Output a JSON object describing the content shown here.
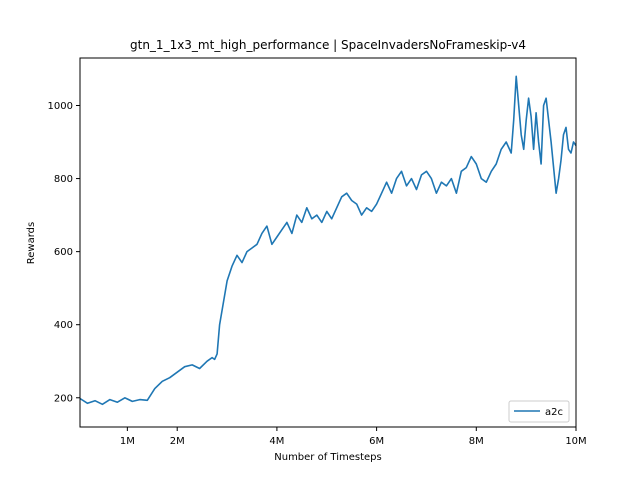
{
  "chart_data": {
    "type": "line",
    "title": "gtn_1_1x3_mt_high_performance | SpaceInvadersNoFrameskip-v4",
    "xlabel": "Number of Timesteps",
    "ylabel": "Rewards",
    "xlim": [
      50000,
      10000000
    ],
    "ylim": [
      120,
      1130
    ],
    "x_ticks": [
      {
        "value": 1000000,
        "label": "1M"
      },
      {
        "value": 2000000,
        "label": "2M"
      },
      {
        "value": 4000000,
        "label": "4M"
      },
      {
        "value": 6000000,
        "label": "6M"
      },
      {
        "value": 8000000,
        "label": "8M"
      },
      {
        "value": 10000000,
        "label": "10M"
      }
    ],
    "y_ticks": [
      {
        "value": 200,
        "label": "200"
      },
      {
        "value": 400,
        "label": "400"
      },
      {
        "value": 600,
        "label": "600"
      },
      {
        "value": 800,
        "label": "800"
      },
      {
        "value": 1000,
        "label": "1000"
      }
    ],
    "legend": {
      "position": "lower-right"
    },
    "grid": false,
    "series": [
      {
        "name": "a2c",
        "color": "#1f77b4",
        "x": [
          50000,
          200000,
          350000,
          500000,
          650000,
          800000,
          950000,
          1100000,
          1250000,
          1400000,
          1550000,
          1700000,
          1850000,
          2000000,
          2150000,
          2300000,
          2450000,
          2600000,
          2700000,
          2750000,
          2800000,
          2850000,
          2900000,
          2950000,
          3000000,
          3100000,
          3200000,
          3300000,
          3400000,
          3500000,
          3600000,
          3700000,
          3800000,
          3900000,
          4000000,
          4100000,
          4200000,
          4300000,
          4400000,
          4500000,
          4600000,
          4700000,
          4800000,
          4900000,
          5000000,
          5100000,
          5200000,
          5300000,
          5400000,
          5500000,
          5600000,
          5700000,
          5800000,
          5900000,
          6000000,
          6100000,
          6200000,
          6300000,
          6400000,
          6500000,
          6600000,
          6700000,
          6800000,
          6900000,
          7000000,
          7100000,
          7200000,
          7300000,
          7400000,
          7500000,
          7600000,
          7700000,
          7800000,
          7900000,
          8000000,
          8100000,
          8200000,
          8300000,
          8400000,
          8500000,
          8600000,
          8700000,
          8750000,
          8800000,
          8850000,
          8900000,
          8950000,
          9000000,
          9050000,
          9100000,
          9150000,
          9200000,
          9250000,
          9300000,
          9350000,
          9400000,
          9450000,
          9500000,
          9550000,
          9600000,
          9650000,
          9700000,
          9750000,
          9800000,
          9850000,
          9900000,
          9950000,
          10000000
        ],
        "y": [
          198,
          185,
          192,
          182,
          195,
          188,
          200,
          190,
          195,
          193,
          225,
          245,
          255,
          270,
          285,
          290,
          280,
          300,
          310,
          305,
          320,
          400,
          440,
          480,
          520,
          560,
          590,
          570,
          600,
          610,
          620,
          650,
          670,
          620,
          640,
          660,
          680,
          650,
          700,
          680,
          720,
          690,
          700,
          680,
          710,
          690,
          720,
          750,
          760,
          740,
          730,
          700,
          720,
          710,
          730,
          760,
          790,
          760,
          800,
          820,
          780,
          800,
          770,
          810,
          820,
          800,
          760,
          790,
          780,
          800,
          760,
          820,
          830,
          860,
          840,
          800,
          790,
          820,
          840,
          880,
          900,
          870,
          960,
          1080,
          1000,
          920,
          880,
          960,
          1020,
          970,
          880,
          980,
          900,
          840,
          1000,
          1020,
          960,
          900,
          830,
          760,
          800,
          850,
          920,
          940,
          880,
          870,
          900,
          890
        ]
      }
    ]
  }
}
